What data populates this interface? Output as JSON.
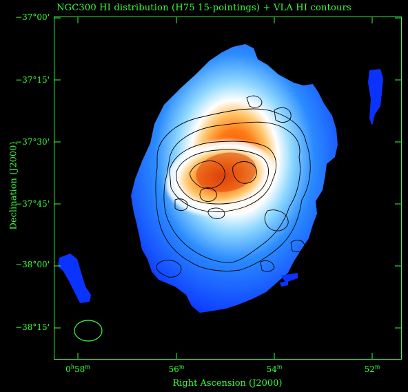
{
  "figure": {
    "title": "NGC300  HI distribution (H75 15-pointings) + VLA HI contours",
    "ylabel": "Declination (J2000)",
    "xlabel": "Right Ascension (J2000)",
    "yticks": [
      "−37°00'",
      "−37°15'",
      "−37°30'",
      "−37°45'",
      "−38°00'",
      "−38°15'"
    ],
    "xticks": {
      "t58_main": "0",
      "t58_h": "h",
      "t58_val": "58",
      "t58_m": "m",
      "t56_val": "56",
      "t56_m": "m",
      "t54_val": "54",
      "t54_m": "m",
      "t52_val": "52",
      "t52_m": "m"
    }
  },
  "colors": {
    "axis": "#39ff3a",
    "background": "#000000",
    "contour": "#000000",
    "beam": "#39ff3a"
  },
  "image": {
    "description": "HI intensity map with colour scale blue-white-orange-red and black VLA contours"
  }
}
